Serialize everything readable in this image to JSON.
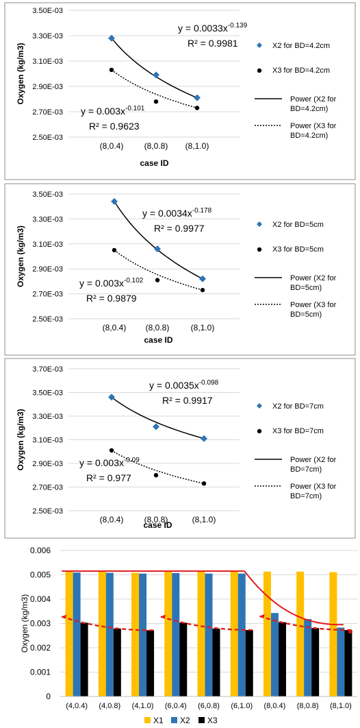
{
  "chart_data": [
    {
      "type": "scatter",
      "xlabel": "case ID",
      "ylabel": "Oxygen (kg/m3)",
      "categories": [
        "(8,0.4)",
        "(8,0.8)",
        "(8,1.0)"
      ],
      "y_ticks": [
        "2.50E-03",
        "2.70E-03",
        "2.90E-03",
        "3.10E-03",
        "3.30E-03",
        "3.50E-03"
      ],
      "ylim": [
        0.0025,
        0.0035
      ],
      "grid": true,
      "legend_position": "right",
      "series": [
        {
          "name": "X2 for BD=4.2cm",
          "marker": "diamond",
          "color": "#2E75B6",
          "values": [
            0.00328,
            0.00299,
            0.00281
          ]
        },
        {
          "name": "X3 for BD=4.2cm",
          "marker": "circle",
          "color": "#000000",
          "values": [
            0.00303,
            0.00278,
            0.00273
          ]
        }
      ],
      "trendlines": [
        {
          "name": "Power (X2 for BD=4.2cm)",
          "style": "solid",
          "coef": 0.0033,
          "exp_text": "-0.139",
          "eq_prefix": "y = 0.0033x",
          "r2": "R² = 0.9981"
        },
        {
          "name": "Power (X3 for BD=4.2cm)",
          "style": "dotted",
          "coef": 0.003,
          "exp_text": "-0.101",
          "eq_prefix": "y = 0.003x",
          "r2": "R² = 0.9623"
        }
      ]
    },
    {
      "type": "scatter",
      "xlabel": "case ID",
      "ylabel": "Oxygen (kg/m3)",
      "categories": [
        "(8,0.4)",
        "(8,0.8)",
        "(8,1.0)"
      ],
      "y_ticks": [
        "2.50E-03",
        "2.70E-03",
        "2.90E-03",
        "3.10E-03",
        "3.30E-03",
        "3.50E-03"
      ],
      "ylim": [
        0.0025,
        0.0035
      ],
      "grid": true,
      "legend_position": "right",
      "series": [
        {
          "name": "X2 for BD=5cm",
          "marker": "diamond",
          "color": "#2E75B6",
          "values": [
            0.00344,
            0.00306,
            0.00282
          ]
        },
        {
          "name": "X3 for BD=5cm",
          "marker": "circle",
          "color": "#000000",
          "values": [
            0.00305,
            0.00281,
            0.00273
          ]
        }
      ],
      "trendlines": [
        {
          "name": "Power (X2 for BD=5cm)",
          "style": "solid",
          "coef": 0.0034,
          "exp_text": "-0.178",
          "eq_prefix": "y = 0.0034x",
          "r2": "R² = 0.9977"
        },
        {
          "name": "Power (X3 for BD=5cm)",
          "style": "dotted",
          "coef": 0.003,
          "exp_text": "-0.102",
          "eq_prefix": "y = 0.003x",
          "r2": "R² = 0.9879"
        }
      ]
    },
    {
      "type": "scatter",
      "xlabel": "case ID",
      "ylabel": "Oxygen (kg/m3)",
      "categories": [
        "(8,0.4)",
        "(8,0.8)",
        "(8,1.0)"
      ],
      "y_ticks": [
        "2.50E-03",
        "2.70E-03",
        "2.90E-03",
        "3.10E-03",
        "3.30E-03",
        "3.50E-03",
        "3.70E-03"
      ],
      "ylim": [
        0.0025,
        0.0037
      ],
      "grid": true,
      "legend_position": "right",
      "series": [
        {
          "name": "X2 for BD=7cm",
          "marker": "diamond",
          "color": "#2E75B6",
          "values": [
            0.00346,
            0.00321,
            0.00311
          ]
        },
        {
          "name": "X3 for BD=7cm",
          "marker": "circle",
          "color": "#000000",
          "values": [
            0.00301,
            0.0028,
            0.00273
          ]
        }
      ],
      "trendlines": [
        {
          "name": "Power (X2 for BD=7cm)",
          "style": "solid",
          "coef": 0.0035,
          "exp_text": "-0.098",
          "eq_prefix": "y = 0.0035x",
          "r2": "R² = 0.9917"
        },
        {
          "name": "Power (X3 for BD=7cm)",
          "style": "dotted",
          "coef": 0.003,
          "exp_text": "-0.09",
          "eq_prefix": "y = 0.003x",
          "r2": "R² = 0.977"
        }
      ]
    },
    {
      "type": "bar",
      "ylabel": "Oxygen (kg/m3)",
      "categories": [
        "(4,0.4)",
        "(4,0.8)",
        "(4,1.0)",
        "(6,0.4)",
        "(6,0.8)",
        "(6,1.0)",
        "(8,0.4)",
        "(8,0.8)",
        "(8,1.0)"
      ],
      "y_ticks": [
        "0",
        "0.001",
        "0.002",
        "0.003",
        "0.004",
        "0.005",
        "0.006"
      ],
      "ylim": [
        0,
        0.006
      ],
      "grid": true,
      "legend_position": "bottom",
      "series": [
        {
          "name": "X1",
          "color": "#FFC000",
          "values": [
            0.00513,
            0.00513,
            0.00508,
            0.00513,
            0.00513,
            0.00513,
            0.00513,
            0.00513,
            0.00511
          ]
        },
        {
          "name": "X2",
          "color": "#2E75B6",
          "values": [
            0.00509,
            0.00508,
            0.00505,
            0.00507,
            0.00505,
            0.00505,
            0.00343,
            0.00318,
            0.00283
          ]
        },
        {
          "name": "X3",
          "color": "#000000",
          "values": [
            0.00303,
            0.00279,
            0.00272,
            0.00303,
            0.00279,
            0.00273,
            0.00305,
            0.00281,
            0.00273
          ]
        }
      ],
      "overlay_color": "#E31A1C"
    }
  ]
}
